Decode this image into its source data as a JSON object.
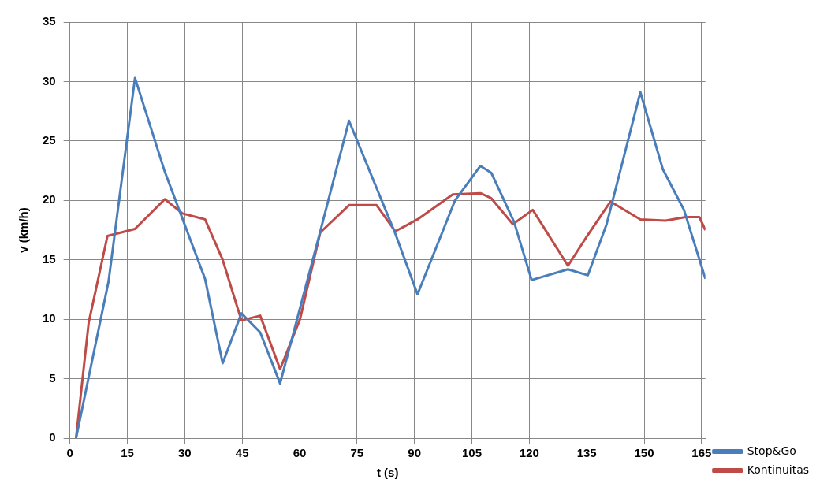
{
  "chart_data": {
    "type": "line",
    "xlabel": "t (s)",
    "ylabel": "v (km/h)",
    "xlim": [
      0,
      166
    ],
    "xticks": [
      0,
      15,
      30,
      45,
      60,
      75,
      90,
      105,
      120,
      135,
      150,
      165
    ],
    "ylim": [
      0,
      35
    ],
    "yticks": [
      0,
      5,
      10,
      15,
      20,
      25,
      30,
      35
    ],
    "grid": true,
    "legend": "bottom right",
    "marker": "none",
    "line_style": "solid",
    "series": [
      {
        "name": "Stop&Go",
        "color": "#4a7ebb",
        "x": [
          1.6,
          10.1,
          17,
          24.8,
          35.3,
          39.9,
          44.8,
          49.7,
          54.9,
          65.4,
          72.9,
          85,
          90.8,
          100.6,
          107.2,
          110.1,
          116,
          120.6,
          130.1,
          135.3,
          140.2,
          149,
          154.9,
          160.4,
          166
        ],
        "values": [
          0,
          13.2,
          30.3,
          22.4,
          13.4,
          6.3,
          10.5,
          8.9,
          4.6,
          17.4,
          26.7,
          17.2,
          12.1,
          20,
          22.9,
          22.3,
          18.2,
          13.3,
          14.2,
          13.7,
          18,
          29.1,
          22.6,
          19.2,
          13.4
        ]
      },
      {
        "name": "Kontinuitas",
        "color": "#be4b48",
        "x": [
          1.6,
          4.9,
          9.8,
          17,
          24.8,
          29.4,
          35.3,
          39.9,
          44.8,
          49.7,
          54.9,
          60.1,
          65.4,
          72.9,
          80.1,
          85,
          90.8,
          100,
          107.2,
          110,
          115.7,
          120.9,
          130.1,
          135.3,
          141.2,
          149,
          155.6,
          160.8,
          164.4,
          166
        ],
        "values": [
          0,
          9.7,
          17,
          17.6,
          20.1,
          18.9,
          18.4,
          15,
          9.9,
          10.3,
          5.8,
          10,
          17.3,
          19.6,
          19.6,
          17.4,
          18.4,
          20.5,
          20.6,
          20.2,
          18,
          19.2,
          14.5,
          17.1,
          19.9,
          18.4,
          18.3,
          18.6,
          18.6,
          17.5
        ]
      }
    ]
  }
}
